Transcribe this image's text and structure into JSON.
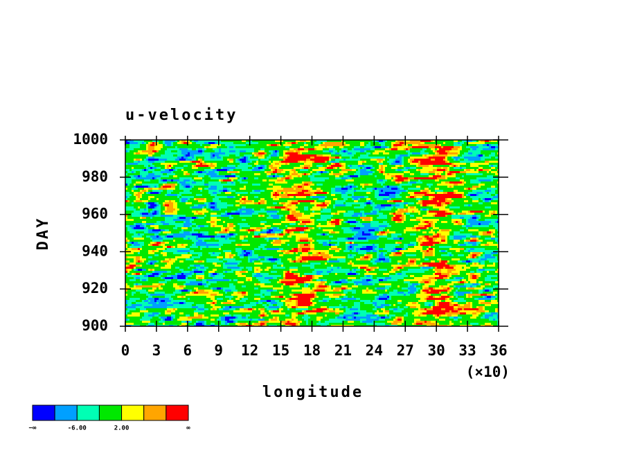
{
  "chart_data": {
    "type": "contour",
    "title": "u-velocity",
    "x_label": "longitude",
    "y_label": "DAY",
    "x_multiplier_label": "(×10)",
    "xlim": [
      0,
      36
    ],
    "xticks": [
      0,
      3,
      6,
      9,
      12,
      15,
      18,
      21,
      24,
      27,
      30,
      33,
      36
    ],
    "ylim": [
      900,
      1000
    ],
    "yticks": [
      900,
      920,
      940,
      960,
      980,
      1000
    ],
    "colorbar": {
      "colors": [
        "#0000ff",
        "#00a0ff",
        "#00ffb4",
        "#00e800",
        "#ffff00",
        "#ffa500",
        "#ff0000"
      ],
      "labels": [
        "−∞",
        null,
        "-6.00",
        null,
        "2.00",
        null,
        null,
        "∞"
      ]
    }
  }
}
